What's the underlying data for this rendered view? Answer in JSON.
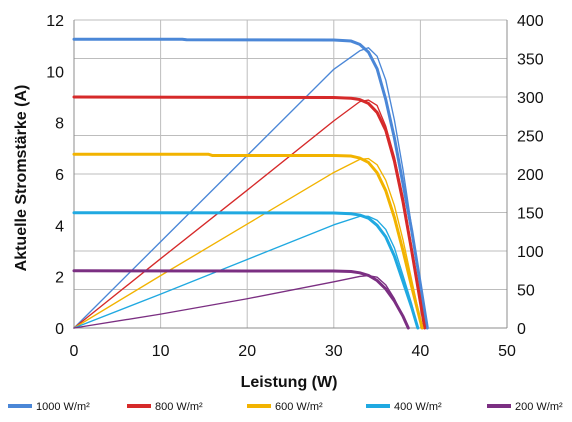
{
  "chart_data": {
    "type": "line",
    "xlabel": "Leistung (W)",
    "ylabel": "Aktuelle Stromstärke (A)",
    "xlim": [
      0,
      50
    ],
    "ylim": [
      0,
      12
    ],
    "y2lim": [
      0,
      400
    ],
    "x_ticks": [
      "0",
      "10",
      "20",
      "30",
      "40",
      "50"
    ],
    "y_ticks": [
      "0",
      "2",
      "4",
      "6",
      "8",
      "10",
      "12"
    ],
    "y2_ticks": [
      "0",
      "50",
      "100",
      "150",
      "200",
      "250",
      "300",
      "350",
      "400"
    ],
    "grid": true,
    "legend_position": "bottom",
    "series": [
      {
        "name": "1000 W/m²",
        "color": "#4b87d7",
        "current": [
          {
            "x": 0,
            "y": 11.25
          },
          {
            "x": 12.5,
            "y": 11.25
          },
          {
            "x": 13,
            "y": 11.23
          },
          {
            "x": 30,
            "y": 11.22
          },
          {
            "x": 32,
            "y": 11.18
          },
          {
            "x": 33,
            "y": 11.05
          },
          {
            "x": 34,
            "y": 10.75
          },
          {
            "x": 35,
            "y": 10.1
          },
          {
            "x": 36,
            "y": 8.9
          },
          {
            "x": 37,
            "y": 7.4
          },
          {
            "x": 38,
            "y": 5.6
          },
          {
            "x": 39,
            "y": 3.8
          },
          {
            "x": 40,
            "y": 1.7
          },
          {
            "x": 40.8,
            "y": 0
          }
        ],
        "power": [
          {
            "x": 0,
            "y": 0
          },
          {
            "x": 10,
            "y": 112
          },
          {
            "x": 20,
            "y": 224
          },
          {
            "x": 30,
            "y": 336
          },
          {
            "x": 33,
            "y": 360
          },
          {
            "x": 34,
            "y": 364
          },
          {
            "x": 35,
            "y": 353
          },
          {
            "x": 36,
            "y": 322
          },
          {
            "x": 37,
            "y": 270
          },
          {
            "x": 38,
            "y": 205
          },
          {
            "x": 39,
            "y": 130
          },
          {
            "x": 40,
            "y": 60
          },
          {
            "x": 40.8,
            "y": 0
          }
        ]
      },
      {
        "name": "800 W/m²",
        "color": "#d62a2a",
        "current": [
          {
            "x": 0,
            "y": 9.0
          },
          {
            "x": 30,
            "y": 8.98
          },
          {
            "x": 32,
            "y": 8.95
          },
          {
            "x": 33,
            "y": 8.9
          },
          {
            "x": 34,
            "y": 8.75
          },
          {
            "x": 35,
            "y": 8.4
          },
          {
            "x": 36,
            "y": 7.7
          },
          {
            "x": 37,
            "y": 6.5
          },
          {
            "x": 38,
            "y": 4.9
          },
          {
            "x": 39,
            "y": 3.0
          },
          {
            "x": 40,
            "y": 1.0
          },
          {
            "x": 40.5,
            "y": 0
          }
        ],
        "power": [
          {
            "x": 0,
            "y": 0
          },
          {
            "x": 10,
            "y": 90
          },
          {
            "x": 20,
            "y": 179
          },
          {
            "x": 30,
            "y": 269
          },
          {
            "x": 33,
            "y": 294
          },
          {
            "x": 34,
            "y": 296
          },
          {
            "x": 35,
            "y": 289
          },
          {
            "x": 36,
            "y": 262
          },
          {
            "x": 37,
            "y": 222
          },
          {
            "x": 38,
            "y": 170
          },
          {
            "x": 39,
            "y": 105
          },
          {
            "x": 40,
            "y": 40
          },
          {
            "x": 40.5,
            "y": 0
          }
        ]
      },
      {
        "name": "600 W/m²",
        "color": "#f2b300",
        "current": [
          {
            "x": 0,
            "y": 6.77
          },
          {
            "x": 15.5,
            "y": 6.77
          },
          {
            "x": 16,
            "y": 6.72
          },
          {
            "x": 30,
            "y": 6.72
          },
          {
            "x": 32,
            "y": 6.7
          },
          {
            "x": 33,
            "y": 6.62
          },
          {
            "x": 34,
            "y": 6.45
          },
          {
            "x": 35,
            "y": 6.05
          },
          {
            "x": 36,
            "y": 5.35
          },
          {
            "x": 37,
            "y": 4.3
          },
          {
            "x": 38,
            "y": 3.0
          },
          {
            "x": 39,
            "y": 1.6
          },
          {
            "x": 40.2,
            "y": 0
          }
        ],
        "power": [
          {
            "x": 0,
            "y": 0
          },
          {
            "x": 10,
            "y": 68
          },
          {
            "x": 20,
            "y": 135
          },
          {
            "x": 30,
            "y": 202
          },
          {
            "x": 33,
            "y": 219
          },
          {
            "x": 34,
            "y": 220
          },
          {
            "x": 35,
            "y": 212
          },
          {
            "x": 36,
            "y": 192
          },
          {
            "x": 37,
            "y": 159
          },
          {
            "x": 38,
            "y": 114
          },
          {
            "x": 39,
            "y": 62
          },
          {
            "x": 40.2,
            "y": 0
          }
        ]
      },
      {
        "name": "400 W/m²",
        "color": "#20a9e1",
        "current": [
          {
            "x": 0,
            "y": 4.49
          },
          {
            "x": 30,
            "y": 4.48
          },
          {
            "x": 32,
            "y": 4.45
          },
          {
            "x": 33,
            "y": 4.4
          },
          {
            "x": 34,
            "y": 4.28
          },
          {
            "x": 35,
            "y": 4.0
          },
          {
            "x": 36,
            "y": 3.55
          },
          {
            "x": 37,
            "y": 2.8
          },
          {
            "x": 38,
            "y": 1.8
          },
          {
            "x": 39,
            "y": 0.8
          },
          {
            "x": 39.7,
            "y": 0
          }
        ],
        "power": [
          {
            "x": 0,
            "y": 0
          },
          {
            "x": 10,
            "y": 44
          },
          {
            "x": 20,
            "y": 89
          },
          {
            "x": 30,
            "y": 134
          },
          {
            "x": 33,
            "y": 145
          },
          {
            "x": 34,
            "y": 145
          },
          {
            "x": 35,
            "y": 140
          },
          {
            "x": 36,
            "y": 128
          },
          {
            "x": 37,
            "y": 104
          },
          {
            "x": 38,
            "y": 68
          },
          {
            "x": 39,
            "y": 31
          },
          {
            "x": 39.7,
            "y": 0
          }
        ]
      },
      {
        "name": "200 W/m²",
        "color": "#7b2f82",
        "current": [
          {
            "x": 0,
            "y": 2.23
          },
          {
            "x": 30,
            "y": 2.22
          },
          {
            "x": 32,
            "y": 2.2
          },
          {
            "x": 33,
            "y": 2.15
          },
          {
            "x": 34,
            "y": 2.05
          },
          {
            "x": 35,
            "y": 1.85
          },
          {
            "x": 36,
            "y": 1.52
          },
          {
            "x": 37,
            "y": 1.05
          },
          {
            "x": 38,
            "y": 0.45
          },
          {
            "x": 38.6,
            "y": 0
          }
        ],
        "power": [
          {
            "x": 0,
            "y": 0
          },
          {
            "x": 10,
            "y": 18
          },
          {
            "x": 20,
            "y": 38
          },
          {
            "x": 30,
            "y": 60
          },
          {
            "x": 33,
            "y": 67
          },
          {
            "x": 34,
            "y": 68
          },
          {
            "x": 35,
            "y": 66
          },
          {
            "x": 36,
            "y": 56
          },
          {
            "x": 37,
            "y": 38
          },
          {
            "x": 38,
            "y": 14
          },
          {
            "x": 38.6,
            "y": 0
          }
        ]
      }
    ]
  }
}
